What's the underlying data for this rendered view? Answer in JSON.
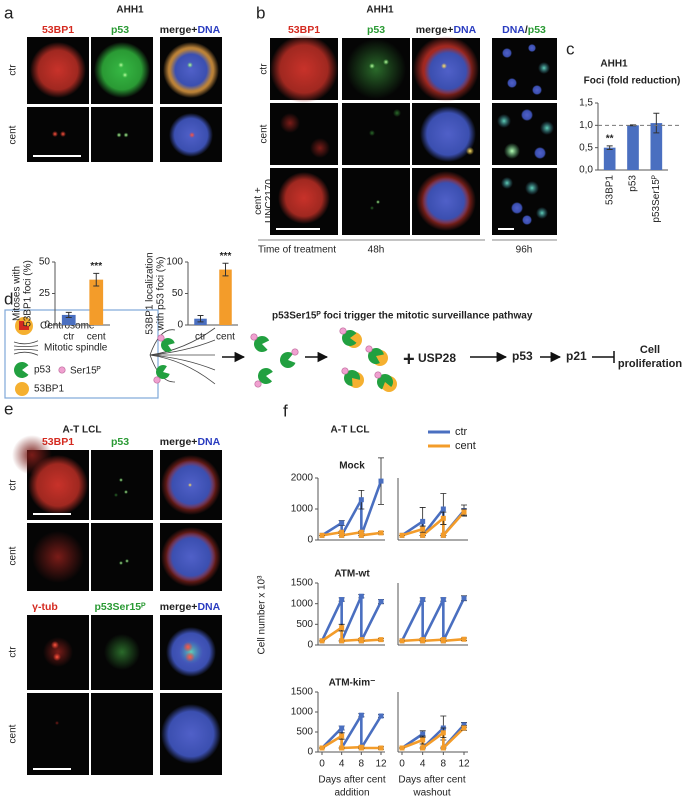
{
  "panels": {
    "a": {
      "label": "a",
      "title": "AHH1",
      "headers": [
        [
          "53BP1"
        ],
        [
          "p53"
        ],
        [
          "merge+",
          "DNA"
        ]
      ],
      "rows": [
        [
          "ctr"
        ],
        [
          "cent"
        ]
      ]
    },
    "b": {
      "label": "b",
      "title": "AHH1",
      "headers": [
        [
          "53BP1"
        ],
        [
          "p53"
        ],
        [
          "merge+",
          "DNA"
        ],
        [
          "DNA",
          "/",
          "p53"
        ]
      ],
      "rows": [
        [
          "ctr"
        ],
        [
          "cent"
        ],
        [
          "cent +",
          "UNC2170"
        ]
      ],
      "time": "Time of treatment",
      "times": [
        "48h",
        "96h"
      ]
    },
    "c": {
      "label": "c"
    },
    "d": {
      "label": "d",
      "legend": [
        "Centrosome",
        "Mitotic spindle",
        "p53",
        "Ser15ᴾ",
        "53BP1"
      ],
      "title": "p53Ser15ᴾ foci trigger the mitotic surveillance pathway",
      "pathway": [
        "+",
        "USP28",
        "p53",
        "p21",
        "Cell",
        "proliferation"
      ]
    },
    "e": {
      "label": "e",
      "title": "A-T LCL",
      "blocks": [
        {
          "headers": [
            [
              "53BP1"
            ],
            [
              "p53"
            ],
            [
              "merge+",
              "DNA"
            ]
          ],
          "rows": [
            [
              "ctr"
            ],
            [
              "cent"
            ]
          ]
        },
        {
          "headers": [
            [
              "γ-tub"
            ],
            [
              "p53Ser15ᴾ"
            ],
            [
              "merge+",
              "DNA"
            ]
          ],
          "rows": [
            [
              "ctr"
            ],
            [
              "cent"
            ]
          ]
        }
      ]
    },
    "f": {
      "label": "f",
      "title": "A-T LCL",
      "legend": [
        {
          "name": "ctr",
          "color": "#4a6fc0"
        },
        {
          "name": "cent",
          "color": "#f39c2a"
        }
      ],
      "rows": [
        "Mock",
        "ATM-wt",
        "ATM-kim⁻"
      ],
      "ylabel": "Cell number x 10³",
      "xlabels": [
        [
          "Days after cent",
          "addition"
        ],
        [
          "Days after cent",
          "washout"
        ]
      ]
    }
  },
  "chart_data": [
    {
      "type": "bar",
      "ylabel": [
        "Mitoses with",
        "53BP1 foci (%)"
      ],
      "categories": [
        "ctr",
        "cent"
      ],
      "values": [
        8,
        36
      ],
      "errors": [
        2,
        5
      ],
      "colors": [
        "#4a6fc0",
        "#f39c2a"
      ],
      "annotations": [
        null,
        "***"
      ],
      "ylim": [
        0,
        50
      ],
      "yticks": [
        0,
        25,
        50
      ]
    },
    {
      "type": "bar",
      "ylabel": [
        "53BP1 localization",
        "with p53 foci (%)"
      ],
      "categories": [
        "ctr",
        "cent"
      ],
      "values": [
        10,
        88
      ],
      "errors": [
        5,
        10
      ],
      "colors": [
        "#4a6fc0",
        "#f39c2a"
      ],
      "annotations": [
        null,
        "***"
      ],
      "ylim": [
        0,
        100
      ],
      "yticks": [
        0,
        50,
        100
      ]
    },
    {
      "type": "bar",
      "title": "AHH1",
      "subtitle": "Foci (fold reduction)",
      "categories": [
        "53BP1",
        "p53",
        "p53Ser15ᴾ"
      ],
      "values": [
        0.5,
        1.0,
        1.05
      ],
      "errors": [
        0.04,
        0.01,
        0.22
      ],
      "color": "#4a6fc0",
      "annotations": [
        "**",
        null,
        null
      ],
      "reference_line": 1,
      "ylim": [
        0,
        1.5
      ],
      "yticks": [
        {
          "value": 0,
          "label": "0,0"
        },
        {
          "value": 0.5,
          "label": "0,5"
        },
        {
          "value": 1,
          "label": "1,0"
        },
        {
          "value": 1.5,
          "label": "1,5"
        }
      ]
    },
    {
      "type": "line",
      "x": [
        0,
        4,
        4,
        8,
        8,
        12
      ],
      "xlim": [
        0,
        12
      ],
      "ylim": [
        0,
        2000
      ],
      "yticks": [
        0,
        1000,
        2000
      ],
      "series": [
        {
          "values": [
            150,
            550,
            150,
            1300,
            150,
            1900
          ],
          "errors": [
            0,
            80,
            0,
            300,
            0,
            750
          ]
        },
        {
          "values": [
            150,
            250,
            150,
            250,
            150,
            230
          ],
          "errors": [
            0,
            30,
            0,
            30,
            0,
            40
          ]
        }
      ]
    },
    {
      "type": "line",
      "x": [
        0,
        4,
        4,
        8,
        8,
        12
      ],
      "xlim": [
        0,
        12
      ],
      "ylim": [
        0,
        2000
      ],
      "series": [
        {
          "values": [
            150,
            600,
            150,
            1000,
            150,
            950
          ],
          "errors": [
            0,
            450,
            0,
            500,
            0,
            180
          ]
        },
        {
          "values": [
            150,
            350,
            150,
            700,
            150,
            900
          ],
          "errors": [
            0,
            100,
            0,
            200,
            0,
            100
          ]
        }
      ]
    },
    {
      "type": "line",
      "x": [
        0,
        4,
        4,
        8,
        8,
        12
      ],
      "xlim": [
        0,
        12
      ],
      "ylim": [
        0,
        1500
      ],
      "yticks": [
        0,
        500,
        1000,
        1500
      ],
      "series": [
        {
          "values": [
            100,
            1100,
            100,
            1180,
            100,
            1050
          ],
          "errors": [
            0,
            40,
            0,
            40,
            0,
            50
          ]
        },
        {
          "values": [
            100,
            420,
            100,
            130,
            100,
            130
          ],
          "errors": [
            0,
            80,
            0,
            30,
            0,
            30
          ]
        }
      ]
    },
    {
      "type": "line",
      "x": [
        0,
        4,
        4,
        8,
        8,
        12
      ],
      "xlim": [
        0,
        12
      ],
      "ylim": [
        0,
        1500
      ],
      "series": [
        {
          "values": [
            100,
            1100,
            100,
            1100,
            100,
            1130
          ],
          "errors": [
            0,
            40,
            0,
            40,
            0,
            60
          ]
        },
        {
          "values": [
            100,
            130,
            100,
            130,
            100,
            140
          ],
          "errors": [
            0,
            30,
            0,
            30,
            0,
            30
          ]
        }
      ]
    },
    {
      "type": "line",
      "x": [
        0,
        4,
        4,
        8,
        8,
        12
      ],
      "xlim": [
        0,
        12
      ],
      "ylim": [
        0,
        1500
      ],
      "yticks": [
        0,
        500,
        1000,
        1500
      ],
      "xticks": [
        0,
        4,
        8,
        12
      ],
      "series": [
        {
          "values": [
            100,
            600,
            100,
            920,
            100,
            900
          ],
          "errors": [
            0,
            50,
            0,
            40,
            0,
            40
          ]
        },
        {
          "values": [
            100,
            400,
            100,
            120,
            100,
            100
          ],
          "errors": [
            0,
            80,
            0,
            30,
            0,
            30
          ]
        }
      ]
    },
    {
      "type": "line",
      "x": [
        0,
        4,
        4,
        8,
        8,
        12
      ],
      "xlim": [
        0,
        12
      ],
      "ylim": [
        0,
        1500
      ],
      "xticks": [
        0,
        4,
        8,
        12
      ],
      "series": [
        {
          "values": [
            100,
            450,
            100,
            600,
            100,
            680
          ],
          "errors": [
            0,
            80,
            0,
            300,
            0,
            60
          ]
        },
        {
          "values": [
            100,
            300,
            100,
            480,
            100,
            600
          ],
          "errors": [
            0,
            100,
            0,
            120,
            0,
            60
          ]
        }
      ]
    }
  ]
}
